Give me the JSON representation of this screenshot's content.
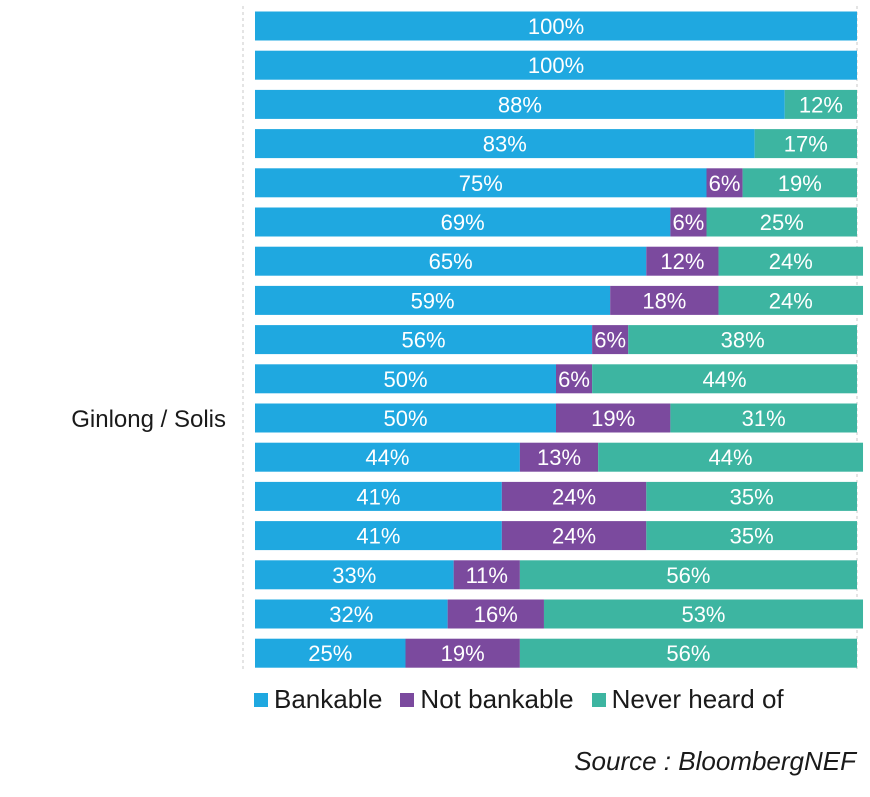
{
  "chart_data": {
    "type": "bar",
    "orientation": "horizontal",
    "stacked": true,
    "categories": [
      "",
      "",
      "",
      "",
      "",
      "",
      "",
      "",
      "",
      "",
      "Ginlong / Solis",
      "",
      "",
      "",
      "",
      "",
      ""
    ],
    "series": [
      {
        "name": "Bankable",
        "color": "#1fa8e0",
        "values": [
          100,
          100,
          88,
          83,
          75,
          69,
          65,
          59,
          56,
          50,
          50,
          44,
          41,
          41,
          33,
          32,
          25
        ]
      },
      {
        "name": "Not bankable",
        "color": "#7b4a9e",
        "values": [
          0,
          0,
          0,
          0,
          6,
          6,
          12,
          18,
          6,
          6,
          19,
          13,
          24,
          24,
          11,
          16,
          19
        ]
      },
      {
        "name": "Never heard of",
        "color": "#3db5a1",
        "values": [
          0,
          0,
          12,
          17,
          19,
          25,
          24,
          24,
          38,
          44,
          31,
          44,
          35,
          35,
          56,
          53,
          56
        ]
      }
    ],
    "xlim": [
      0,
      100
    ],
    "value_suffix": "%",
    "legend_position": "bottom"
  },
  "legend": [
    {
      "label": "Bankable",
      "color": "#1fa8e0"
    },
    {
      "label": "Not bankable",
      "color": "#7b4a9e"
    },
    {
      "label": "Never heard of",
      "color": "#3db5a1"
    }
  ],
  "source": "Source : BloombergNEF"
}
